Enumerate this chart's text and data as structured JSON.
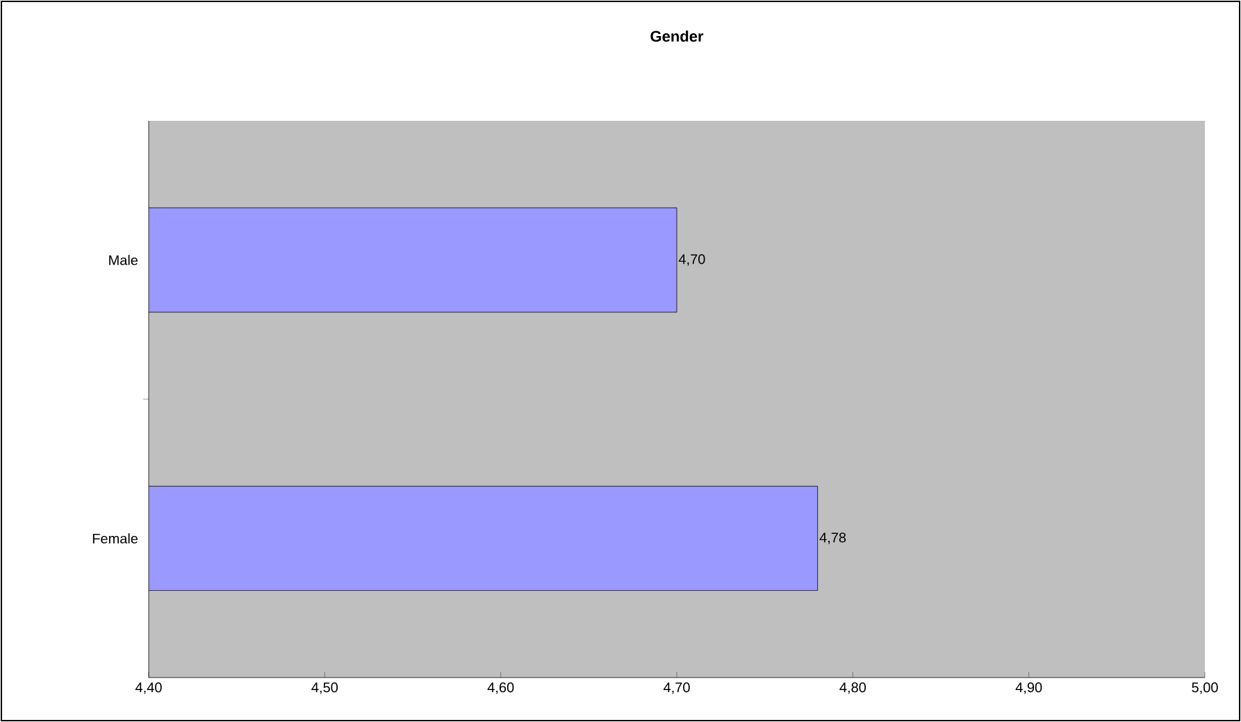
{
  "chart_data": {
    "type": "bar",
    "orientation": "horizontal",
    "title": "Gender",
    "categories": [
      "Male",
      "Female"
    ],
    "values": [
      4.7,
      4.78
    ],
    "value_labels": [
      "4,70",
      "4,78"
    ],
    "color": "#9999ff",
    "xlim": [
      4.4,
      5.0
    ],
    "xticks": [
      {
        "value": 4.4,
        "label": "4,40"
      },
      {
        "value": 4.5,
        "label": "4,50"
      },
      {
        "value": 4.6,
        "label": "4,60"
      },
      {
        "value": 4.7,
        "label": "4,70"
      },
      {
        "value": 4.8,
        "label": "4,80"
      },
      {
        "value": 4.9,
        "label": "4,90"
      },
      {
        "value": 5.0,
        "label": "5,00"
      }
    ],
    "grid": false
  }
}
